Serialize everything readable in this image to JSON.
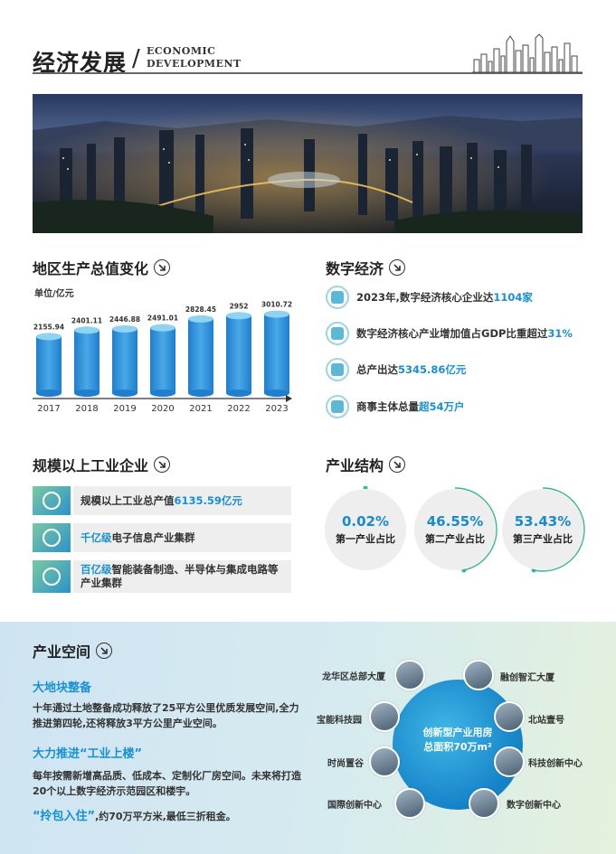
{
  "header": {
    "title_cn": "经济发展",
    "slash": "/",
    "title_en_1": "ECONOMIC",
    "title_en_2": "DEVELOPMENT"
  },
  "gdp": {
    "title": "地区生产总值变化",
    "unit": "单位/亿元"
  },
  "chart_data": {
    "type": "bar",
    "categories": [
      "2017",
      "2018",
      "2019",
      "2020",
      "2021",
      "2022",
      "2023"
    ],
    "values": [
      2155.94,
      2401.11,
      2446.88,
      2491.01,
      2828.45,
      2952,
      3010.72
    ],
    "value_labels": [
      "2155.94",
      "2401.11",
      "2446.88",
      "2491.01",
      "2828.45",
      "2952",
      "3010.72"
    ],
    "title": "地区生产总值变化",
    "ylabel": "单位/亿元",
    "ylim": [
      0,
      3100
    ],
    "grid": false,
    "colors": [
      "#8fd3f4",
      "#1f7fce"
    ]
  },
  "digital": {
    "title": "数字经济",
    "items": [
      {
        "text": "2023年,数字经济核心企业达",
        "hl": "1104家",
        "icon": "building-icon"
      },
      {
        "text": "数字经济核心产业增加值占GDP比重超过",
        "hl": "31%",
        "icon": "gear-icon"
      },
      {
        "text": "总产出达",
        "hl": "5345.86亿元",
        "icon": "chart-icon"
      },
      {
        "text": "商事主体总量",
        "hl": "超54万户",
        "icon": "people-icon"
      }
    ]
  },
  "industry": {
    "title": "规模以上工业企业",
    "items": [
      {
        "pre": "规模以上工业总产值",
        "hl": "6135.59亿元",
        "post": "",
        "icon": "factory-icon"
      },
      {
        "pre": "",
        "hl": "千亿级",
        "post": "电子信息产业集群",
        "icon": "chip-icon"
      },
      {
        "pre": "",
        "hl": "百亿级",
        "post": "智能装备制造、半导体与集成电路等产业集群",
        "icon": "robot-arm-icon"
      }
    ]
  },
  "structure": {
    "title": "产业结构",
    "items": [
      {
        "pct": "0.02%",
        "label": "第一产业占比",
        "value": 0.0002
      },
      {
        "pct": "46.55%",
        "label": "第二产业占比",
        "value": 0.4655
      },
      {
        "pct": "53.43%",
        "label": "第三产业占比",
        "value": 0.5343
      }
    ]
  },
  "space": {
    "title": "产业空间",
    "h1": "大地块整备",
    "p1": "十年通过土地整备成功释放了25平方公里优质发展空间,全力推进第四轮,还将释放3平方公里产业空间。",
    "h2": "大力推进“工业上楼”",
    "p2": "每年按需新增高品质、低成本、定制化厂房空间。未来将打造20个以上数字经济示范园区和楼宇。",
    "h3": "“拎包入住”",
    "p3": ",约70万平方米,最低三折租金。",
    "center_1": "创新型产业用房",
    "center_2": "总面积70万m²",
    "places": [
      "龙华区总部大厦",
      "融创智汇大厦",
      "宝能科技园",
      "北站壹号",
      "时尚置谷",
      "科技创新中心",
      "国際创新中心",
      "数字创新中心"
    ]
  }
}
